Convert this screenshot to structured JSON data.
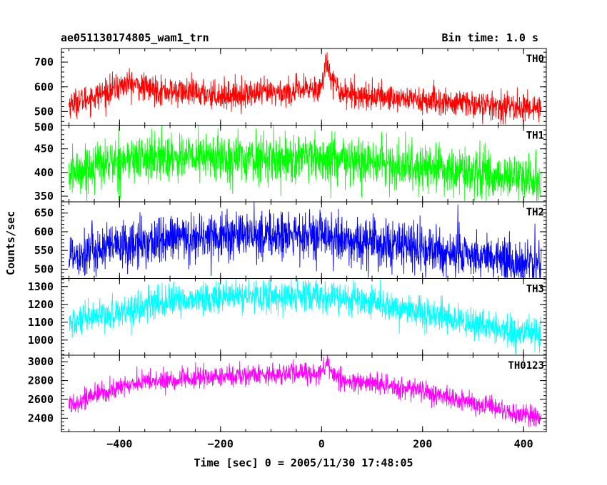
{
  "header": {
    "title": "ae051130174805_wam1_trn",
    "bin_time": "Bin time: 1.0 s"
  },
  "chart_data": {
    "type": "line",
    "xlabel": "Time [sec] 0 = 2005/11/30 17:48:05",
    "ylabel": "Counts/sec",
    "xlim": [
      -515,
      445
    ],
    "x_ticks": [
      -400,
      -200,
      0,
      200,
      400
    ],
    "x_tick_labels": [
      "−400",
      "−200",
      "0",
      "200",
      "400"
    ],
    "x": [
      -500,
      -450,
      -400,
      -380,
      -350,
      -300,
      -250,
      -200,
      -150,
      -100,
      -50,
      0,
      10,
      30,
      50,
      100,
      150,
      200,
      250,
      300,
      350,
      400,
      435
    ],
    "panels": [
      {
        "name": "TH0",
        "color": "#ff0000",
        "ylim": [
          445,
          755
        ],
        "y_ticks": [
          500,
          600,
          700
        ],
        "noise": 28,
        "values": [
          530,
          560,
          600,
          615,
          595,
          580,
          575,
          565,
          570,
          575,
          580,
          600,
          705,
          590,
          575,
          560,
          555,
          545,
          535,
          530,
          520,
          515,
          520
        ]
      },
      {
        "name": "TH1",
        "color": "#00ff00",
        "ylim": [
          338,
          500
        ],
        "y_ticks": [
          350,
          400,
          450,
          500
        ],
        "noise": 25,
        "values": [
          395,
          415,
          425,
          428,
          430,
          432,
          432,
          432,
          430,
          430,
          428,
          425,
          425,
          425,
          422,
          420,
          415,
          410,
          405,
          398,
          392,
          385,
          385
        ]
      },
      {
        "name": "TH2",
        "color": "#0000ff",
        "ylim": [
          475,
          680
        ],
        "y_ticks": [
          500,
          550,
          600,
          650
        ],
        "noise": 32,
        "values": [
          540,
          550,
          560,
          563,
          570,
          580,
          585,
          590,
          590,
          590,
          588,
          585,
          583,
          580,
          575,
          570,
          560,
          553,
          545,
          537,
          528,
          520,
          515
        ]
      },
      {
        "name": "TH3",
        "color": "#00ffff",
        "ylim": [
          915,
          1345
        ],
        "y_ticks": [
          1000,
          1100,
          1200,
          1300
        ],
        "noise": 45,
        "values": [
          1090,
          1120,
          1160,
          1175,
          1190,
          1215,
          1230,
          1240,
          1245,
          1245,
          1245,
          1240,
          1240,
          1235,
          1225,
          1205,
          1180,
          1150,
          1120,
          1090,
          1060,
          1035,
          1030
        ]
      },
      {
        "name": "TH0123",
        "color": "#ff00ff",
        "ylim": [
          2255,
          3070
        ],
        "y_ticks": [
          2400,
          2600,
          2800,
          3000
        ],
        "noise": 55,
        "values": [
          2550,
          2640,
          2720,
          2760,
          2790,
          2800,
          2820,
          2840,
          2860,
          2870,
          2880,
          2880,
          2980,
          2830,
          2790,
          2760,
          2730,
          2690,
          2620,
          2560,
          2500,
          2430,
          2400
        ]
      }
    ]
  }
}
